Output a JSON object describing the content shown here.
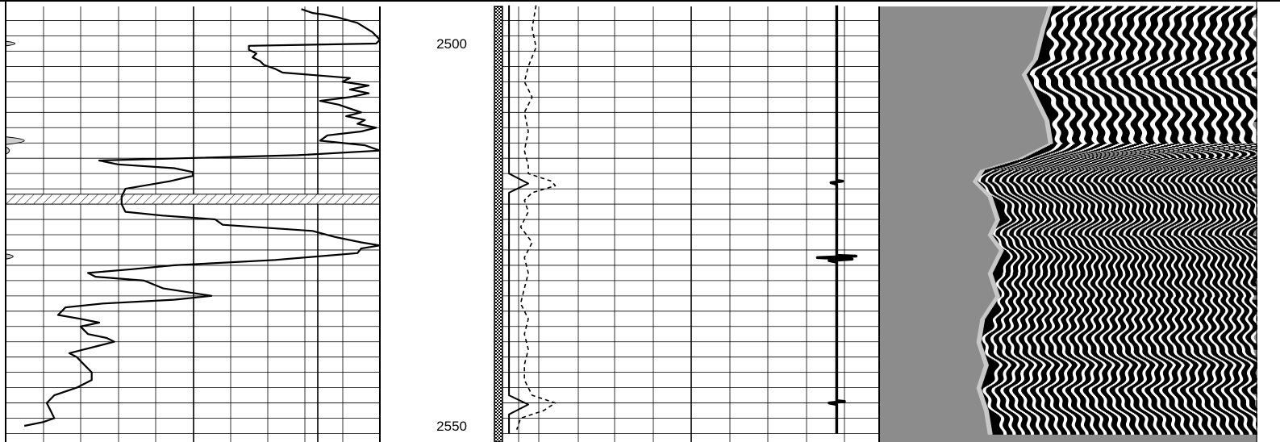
{
  "depth_track": {
    "labels": [
      {
        "depth": 2500,
        "text": "2500"
      },
      {
        "depth": 2550,
        "text": "2550"
      }
    ]
  },
  "chart_data": [
    {
      "type": "line",
      "title": "",
      "panel": "left-track",
      "depth_range": [
        2495,
        2551
      ],
      "series": [
        {
          "values": [
            [
              2495.5,
              0.79
            ],
            [
              2496.0,
              0.82
            ],
            [
              2496.2,
              0.85
            ],
            [
              2496.6,
              0.89
            ],
            [
              2497.3,
              0.94
            ],
            [
              2498.5,
              0.98
            ],
            [
              2499.5,
              1.0
            ],
            [
              2500.0,
              0.99
            ],
            [
              2500.3,
              0.65
            ],
            [
              2500.8,
              0.65
            ],
            [
              2501.3,
              0.67
            ],
            [
              2501.8,
              0.66
            ],
            [
              2502.3,
              0.68
            ],
            [
              2502.8,
              0.69
            ],
            [
              2503.3,
              0.72
            ],
            [
              2503.8,
              0.74
            ],
            [
              2504.5,
              0.92
            ],
            [
              2505.0,
              0.9
            ],
            [
              2505.5,
              0.97
            ],
            [
              2506.0,
              0.92
            ],
            [
              2506.5,
              0.97
            ],
            [
              2507.0,
              0.92
            ],
            [
              2507.5,
              0.84
            ],
            [
              2508.0,
              0.89
            ],
            [
              2508.5,
              0.92
            ],
            [
              2509.0,
              0.95
            ],
            [
              2509.5,
              0.91
            ],
            [
              2510.0,
              0.96
            ],
            [
              2510.5,
              0.94
            ],
            [
              2511.0,
              0.99
            ],
            [
              2511.5,
              0.95
            ],
            [
              2512.0,
              0.86
            ],
            [
              2512.7,
              0.84
            ],
            [
              2513.3,
              0.96
            ],
            [
              2514.0,
              1.0
            ],
            [
              2514.6,
              0.78
            ],
            [
              2515.3,
              0.25
            ],
            [
              2515.8,
              0.3
            ],
            [
              2516.3,
              0.45
            ],
            [
              2516.8,
              0.5
            ],
            [
              2517.3,
              0.5
            ],
            [
              2518.0,
              0.44
            ],
            [
              2519.0,
              0.32
            ],
            [
              2520.0,
              0.31
            ],
            [
              2521.0,
              0.31
            ],
            [
              2522.0,
              0.32
            ],
            [
              2522.5,
              0.42
            ],
            [
              2523.0,
              0.56
            ],
            [
              2523.7,
              0.58
            ],
            [
              2524.5,
              0.82
            ],
            [
              2525.3,
              0.88
            ],
            [
              2526.0,
              0.95
            ],
            [
              2526.4,
              1.0
            ],
            [
              2526.8,
              0.95
            ],
            [
              2527.4,
              0.94
            ],
            [
              2528.3,
              0.72
            ],
            [
              2529.0,
              0.45
            ],
            [
              2529.5,
              0.34
            ],
            [
              2530.0,
              0.22
            ],
            [
              2530.5,
              0.24
            ],
            [
              2531.0,
              0.37
            ],
            [
              2532.0,
              0.42
            ],
            [
              2533.0,
              0.55
            ],
            [
              2533.5,
              0.45
            ],
            [
              2534.0,
              0.26
            ],
            [
              2534.5,
              0.16
            ],
            [
              2535.0,
              0.15
            ],
            [
              2535.5,
              0.14
            ],
            [
              2536.0,
              0.2
            ],
            [
              2536.5,
              0.25
            ],
            [
              2537.0,
              0.2
            ],
            [
              2538.0,
              0.22
            ],
            [
              2538.5,
              0.27
            ],
            [
              2539.0,
              0.29
            ],
            [
              2539.5,
              0.25
            ],
            [
              2540.0,
              0.21
            ],
            [
              2540.5,
              0.17
            ],
            [
              2541.0,
              0.19
            ],
            [
              2542.0,
              0.21
            ],
            [
              2543.0,
              0.23
            ],
            [
              2544.0,
              0.23
            ],
            [
              2545.0,
              0.19
            ],
            [
              2546.0,
              0.13
            ],
            [
              2547.0,
              0.11
            ],
            [
              2548.0,
              0.12
            ],
            [
              2549.0,
              0.13
            ],
            [
              2549.5,
              0.1
            ],
            [
              2550.0,
              0.05
            ]
          ]
        }
      ],
      "fill_region": {
        "depth_range": [
          2519.7,
          2521.0
        ]
      },
      "left_shading": [
        {
          "depth_range": [
            2499.7,
            2500.3
          ],
          "peak": 0.05
        },
        {
          "depth_range": [
            2512.2,
            2513.2
          ],
          "peak": 0.1
        },
        {
          "depth_range": [
            2513.5,
            2514.5
          ],
          "peak": 0.02
        },
        {
          "depth_range": [
            2527.5,
            2528.2
          ],
          "peak": 0.04
        }
      ],
      "grid": true
    },
    {
      "type": "line",
      "title": "",
      "panel": "middle-track",
      "depth_range": [
        2495,
        2551
      ],
      "series": [
        {
          "style": "solid",
          "values": [
            [
              2495.0,
              0.04
            ],
            [
              2517.0,
              0.04
            ],
            [
              2518.3,
              0.09
            ],
            [
              2519.5,
              0.04
            ],
            [
              2546.0,
              0.04
            ],
            [
              2547.2,
              0.09
            ],
            [
              2548.5,
              0.04
            ],
            [
              2551.0,
              0.04
            ]
          ]
        },
        {
          "style": "dashed",
          "values": [
            [
              2495.0,
              0.11
            ],
            [
              2498.0,
              0.1
            ],
            [
              2500.5,
              0.11
            ],
            [
              2503.0,
              0.09
            ],
            [
              2505.0,
              0.08
            ],
            [
              2507.0,
              0.1
            ],
            [
              2509.0,
              0.08
            ],
            [
              2511.5,
              0.09
            ],
            [
              2514.0,
              0.08
            ],
            [
              2516.0,
              0.09
            ],
            [
              2517.0,
              0.09
            ],
            [
              2518.0,
              0.15
            ],
            [
              2518.6,
              0.16
            ],
            [
              2519.5,
              0.1
            ],
            [
              2520.5,
              0.08
            ],
            [
              2522.0,
              0.09
            ],
            [
              2524.0,
              0.07
            ],
            [
              2526.0,
              0.1
            ],
            [
              2528.0,
              0.08
            ],
            [
              2530.0,
              0.09
            ],
            [
              2532.0,
              0.08
            ],
            [
              2534.0,
              0.07
            ],
            [
              2536.0,
              0.09
            ],
            [
              2538.0,
              0.08
            ],
            [
              2540.0,
              0.09
            ],
            [
              2542.0,
              0.08
            ],
            [
              2544.0,
              0.08
            ],
            [
              2546.0,
              0.1
            ],
            [
              2547.0,
              0.16
            ],
            [
              2548.0,
              0.13
            ],
            [
              2549.0,
              0.07
            ],
            [
              2550.5,
              0.06
            ]
          ]
        },
        {
          "style": "noisy",
          "values": [
            [
              2495.0,
              0.89
            ],
            [
              2517.9,
              0.89
            ],
            [
              2518.0,
              0.905
            ],
            [
              2518.2,
              0.875
            ],
            [
              2518.4,
              0.89
            ],
            [
              2527.7,
              0.89
            ],
            [
              2527.8,
              0.94
            ],
            [
              2528.0,
              0.84
            ],
            [
              2528.2,
              0.93
            ],
            [
              2528.4,
              0.87
            ],
            [
              2528.6,
              0.89
            ],
            [
              2546.7,
              0.89
            ],
            [
              2546.8,
              0.91
            ],
            [
              2547.0,
              0.87
            ],
            [
              2547.2,
              0.89
            ],
            [
              2551.0,
              0.89
            ]
          ]
        }
      ],
      "grid": true
    },
    {
      "type": "heatmap",
      "title": "",
      "panel": "right-track",
      "depth_range": [
        2495,
        2551
      ],
      "palette": [
        "#000000",
        "#ffffff",
        "#8c8c8c",
        "#c8c8c8"
      ],
      "boundary": [
        [
          2495.0,
          0.46
        ],
        [
          2498.0,
          0.44
        ],
        [
          2502.0,
          0.42
        ],
        [
          2504.0,
          0.39
        ],
        [
          2507.0,
          0.42
        ],
        [
          2510.0,
          0.45
        ],
        [
          2513.0,
          0.46
        ],
        [
          2515.0,
          0.38
        ],
        [
          2516.5,
          0.28
        ],
        [
          2518.0,
          0.26
        ],
        [
          2520.0,
          0.3
        ],
        [
          2523.0,
          0.32
        ],
        [
          2525.0,
          0.3
        ],
        [
          2527.0,
          0.33
        ],
        [
          2530.0,
          0.3
        ],
        [
          2533.0,
          0.32
        ],
        [
          2536.0,
          0.28
        ],
        [
          2539.0,
          0.27
        ],
        [
          2542.0,
          0.29
        ],
        [
          2545.0,
          0.27
        ],
        [
          2548.0,
          0.29
        ],
        [
          2551.0,
          0.3
        ]
      ],
      "stripe_period": [
        [
          2495.0,
          2.2
        ],
        [
          2513.0,
          2.3
        ],
        [
          2515.0,
          1.3
        ],
        [
          2525.0,
          1.2
        ],
        [
          2530.0,
          1.4
        ],
        [
          2535.0,
          1.5
        ],
        [
          2540.0,
          1.6
        ],
        [
          2551.0,
          1.7
        ]
      ]
    }
  ]
}
